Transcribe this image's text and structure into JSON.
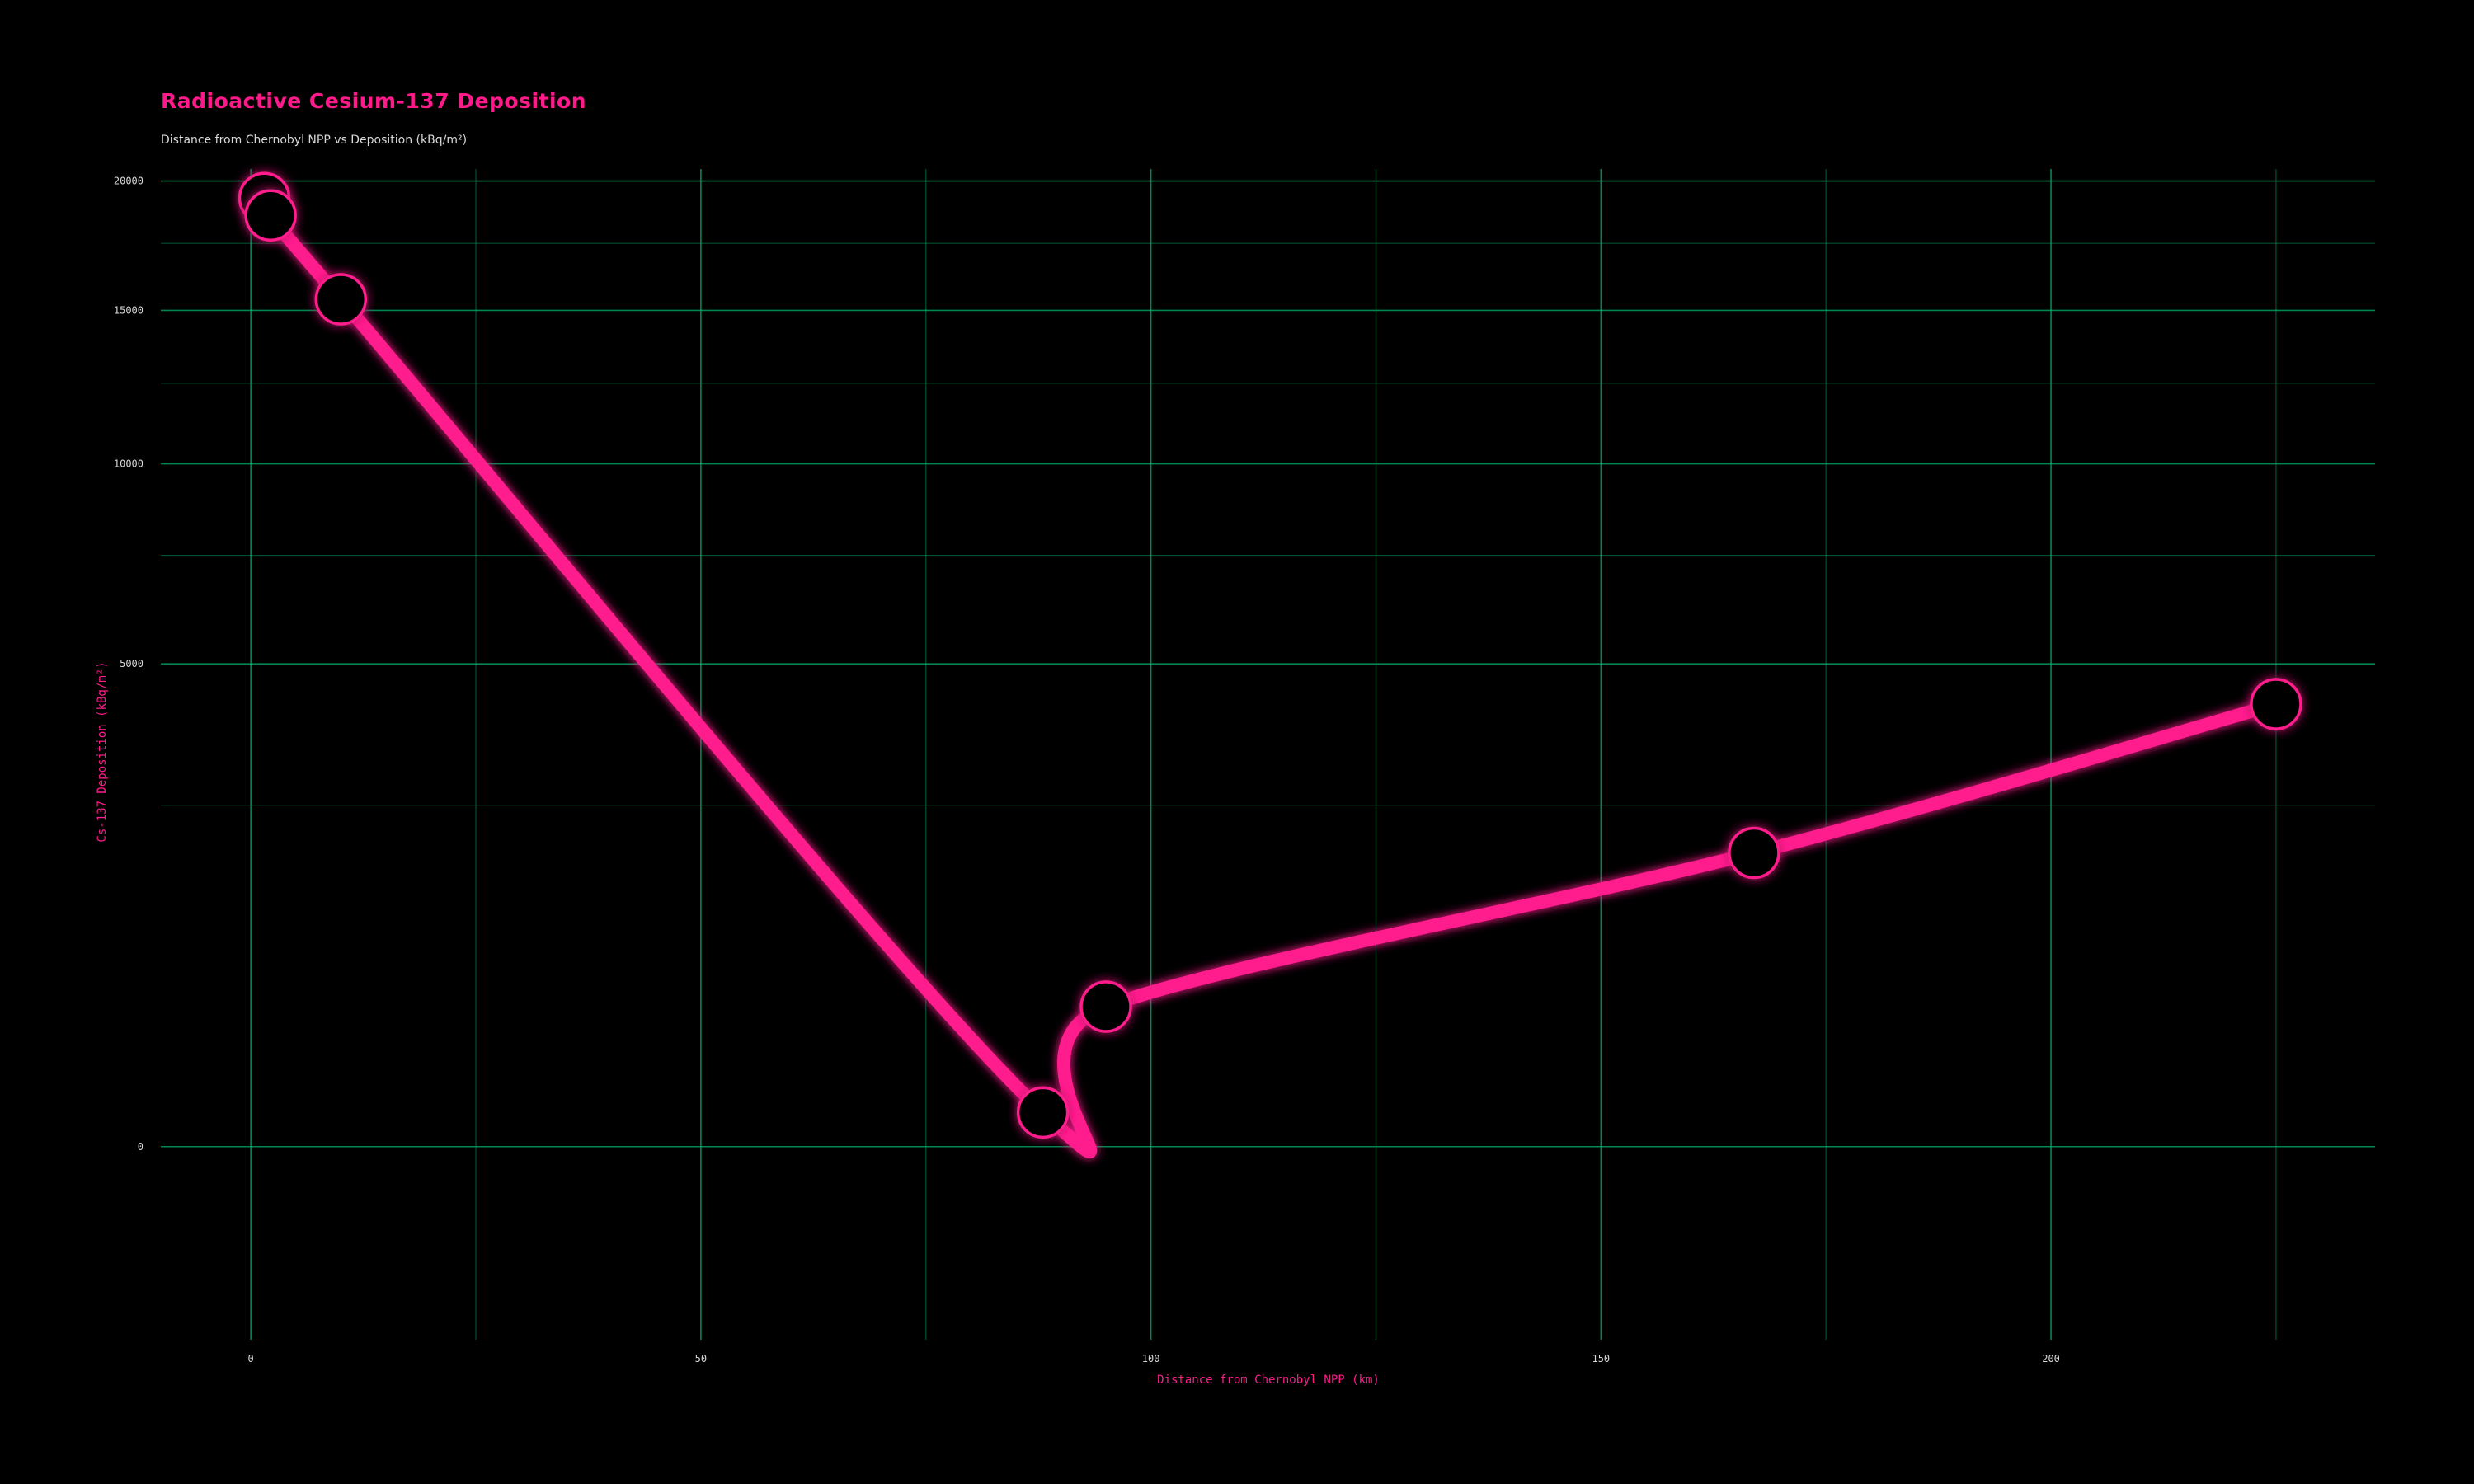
{
  "chart_data": {
    "type": "line",
    "title": "Radioactive Cesium-137 Deposition",
    "subtitle": "Distance from Chernobyl NPP vs Deposition (kBq/m²)",
    "xlabel": "Distance from Chernobyl NPP (km)",
    "ylabel": "Cs-137 Deposition (kBq/m²)",
    "x_ticks": [
      0,
      50,
      100,
      150,
      200
    ],
    "y_ticks": [
      0,
      5000,
      10000,
      15000,
      20000
    ],
    "xlim": [
      -10,
      236
    ],
    "ylim": [
      -800,
      20500
    ],
    "y_scale": "sqrt",
    "grid": true,
    "series": [
      {
        "x": [
          1.5,
          2.2,
          10,
          88,
          95,
          167,
          225
        ],
        "y": [
          19300,
          18600,
          15400,
          25,
          420,
          1850,
          4200
        ]
      }
    ],
    "colors": {
      "line": "#ff1a8c",
      "marker_stroke": "#ff1a8c",
      "marker_fill": "#000000",
      "grid": "#00b36b",
      "tick_label": "#d8d8d8",
      "axis_label": "#ff1a8c",
      "background": "#000000"
    }
  }
}
